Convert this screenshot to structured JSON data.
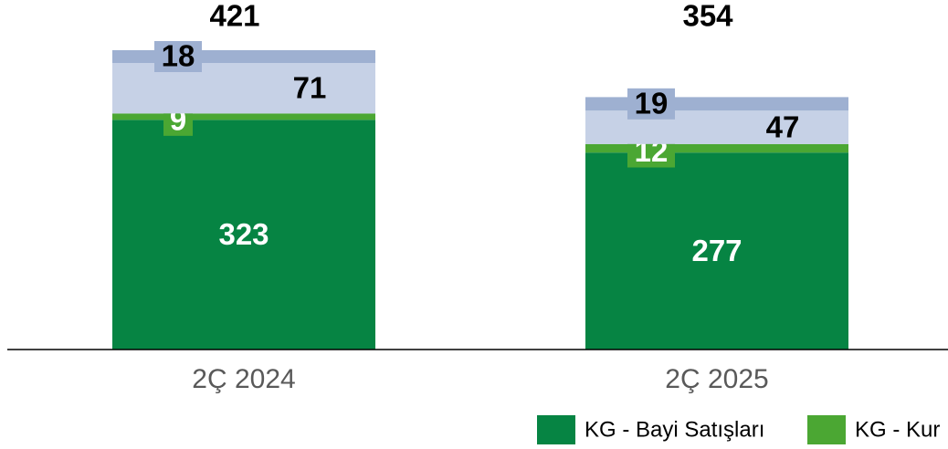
{
  "chart_data": {
    "type": "stacked_bar",
    "categories": [
      "2Ç 2024",
      "2Ç 2025"
    ],
    "series": [
      {
        "name": "KG - Bayi Satışları",
        "color": "#068443",
        "values": [
          323,
          277
        ]
      },
      {
        "name": "KG - Kur",
        "color": "#4ba733",
        "values": [
          9,
          12
        ]
      },
      {
        "color": "#c6d1e6",
        "values": [
          71,
          47
        ]
      },
      {
        "color": "#9eb0d1",
        "values": [
          18,
          19
        ]
      }
    ],
    "totals": [
      421,
      354
    ],
    "ylim": [
      0,
      421
    ]
  }
}
